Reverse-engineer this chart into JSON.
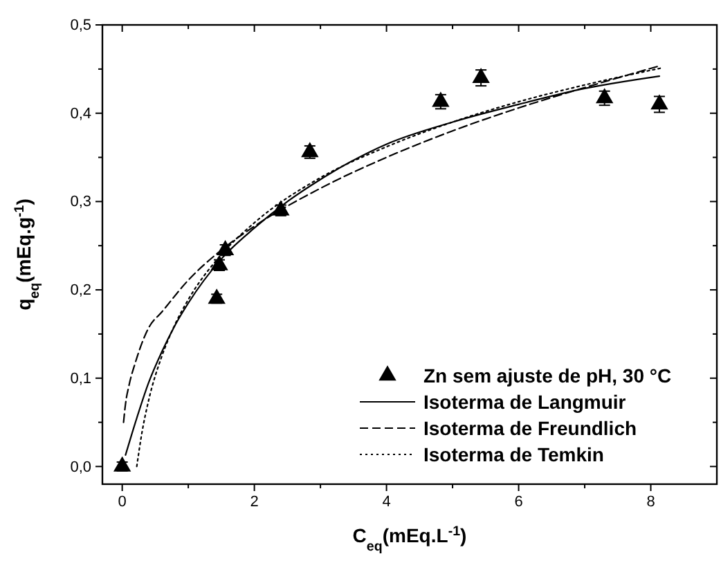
{
  "chart_data": {
    "type": "scatter",
    "xlabel": "C$_{eq}$(mEq.L$^{-1}$)",
    "ylabel": "q$_{eq}$(mEq.g$^{-1}$)",
    "xlim": [
      -0.3,
      9
    ],
    "ylim": [
      -0.02,
      0.5
    ],
    "xticks": [
      {
        "value": 0,
        "label": "0"
      },
      {
        "value": 1,
        "label": null
      },
      {
        "value": 2,
        "label": "2"
      },
      {
        "value": 3,
        "label": null
      },
      {
        "value": 4,
        "label": "4"
      },
      {
        "value": 5,
        "label": null
      },
      {
        "value": 6,
        "label": "6"
      },
      {
        "value": 7,
        "label": null
      },
      {
        "value": 8,
        "label": "8"
      }
    ],
    "yticks": [
      {
        "value": 0,
        "label": "0,0"
      },
      {
        "value": 0.05,
        "label": null
      },
      {
        "value": 0.1,
        "label": "0,1"
      },
      {
        "value": 0.15,
        "label": null
      },
      {
        "value": 0.2,
        "label": "0,2"
      },
      {
        "value": 0.25,
        "label": null
      },
      {
        "value": 0.3,
        "label": "0,3"
      },
      {
        "value": 0.35,
        "label": null
      },
      {
        "value": 0.4,
        "label": "0,4"
      },
      {
        "value": 0.45,
        "label": null
      },
      {
        "value": 0.5,
        "label": "0,5"
      }
    ],
    "legend": "bottom right",
    "grid": false,
    "series": [
      {
        "name": "Zn sem ajuste de pH, 30 °C",
        "type": "scatter",
        "marker": "triangle",
        "color": "#000000",
        "x": [
          0,
          1.43,
          1.47,
          1.56,
          2.4,
          2.84,
          4.82,
          5.43,
          7.3,
          8.13
        ],
        "values": [
          0,
          0.19,
          0.228,
          0.245,
          0.29,
          0.356,
          0.413,
          0.44,
          0.417,
          0.41
        ],
        "errors": [
          0.005,
          0.005,
          0.006,
          0.006,
          0.006,
          0.007,
          0.008,
          0.009,
          0.008,
          0.009
        ]
      },
      {
        "name": "Isoterma de Langmuir",
        "type": "line",
        "line_style": "solid",
        "marker": "none",
        "color": "#000000",
        "x": [
          0.05,
          0.2,
          0.4,
          0.6,
          0.8,
          1.0,
          1.5,
          2.0,
          2.5,
          3,
          4,
          5,
          6,
          7,
          8.13
        ],
        "values": [
          0.013,
          0.05,
          0.095,
          0.13,
          0.16,
          0.185,
          0.235,
          0.27,
          0.3,
          0.325,
          0.365,
          0.39,
          0.41,
          0.428,
          0.442
        ]
      },
      {
        "name": "Isoterma de Freundlich",
        "type": "line",
        "line_style": "dashed",
        "marker": "none",
        "color": "#000000",
        "x": [
          0.02,
          0.05,
          0.1,
          0.2,
          0.4,
          0.6,
          1.0,
          1.5,
          2,
          3,
          4,
          5,
          6,
          7,
          8.15
        ],
        "values": [
          0.05,
          0.071,
          0.091,
          0.118,
          0.157,
          0.175,
          0.211,
          0.245,
          0.272,
          0.315,
          0.35,
          0.38,
          0.406,
          0.429,
          0.454
        ]
      },
      {
        "name": "Isoterma de Temkin",
        "type": "line",
        "line_style": "dotted",
        "marker": "none",
        "color": "#000000",
        "x": [
          0.22,
          0.3,
          0.4,
          0.6,
          0.8,
          1.0,
          1.5,
          2,
          3,
          4,
          5,
          6,
          7,
          8.15
        ],
        "values": [
          0,
          0.039,
          0.075,
          0.125,
          0.161,
          0.189,
          0.24,
          0.276,
          0.327,
          0.362,
          0.39,
          0.413,
          0.432,
          0.451
        ]
      }
    ]
  }
}
